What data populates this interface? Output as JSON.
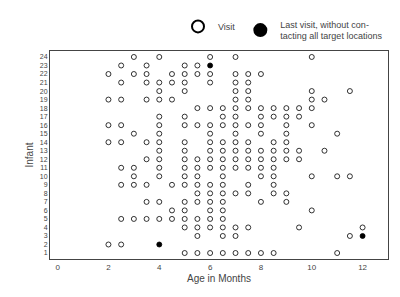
{
  "chart_data": {
    "type": "scatter",
    "xlabel": "Age in Months",
    "ylabel": "Infant",
    "xlim": [
      -0.3,
      13.0
    ],
    "ylim": [
      0.3,
      24.7
    ],
    "xticks": [
      0,
      2,
      4,
      6,
      8,
      10,
      12
    ],
    "yticks": [
      1,
      2,
      3,
      4,
      5,
      6,
      7,
      8,
      9,
      10,
      11,
      12,
      13,
      14,
      15,
      16,
      17,
      18,
      19,
      20,
      21,
      22,
      23,
      24
    ],
    "grid": false,
    "legend": "upper right",
    "series": [
      {
        "name": "Visit",
        "color": "white",
        "marker": "circle",
        "x": [
          3,
          4,
          6,
          7,
          10,
          2.5,
          3.5,
          5,
          5.5,
          2,
          3,
          3.5,
          4.5,
          5,
          5.5,
          6,
          7,
          7.5,
          8,
          2.5,
          3.5,
          4,
          4.5,
          5,
          6,
          7,
          7.5,
          4,
          5,
          7,
          7.5,
          10,
          11.5,
          2,
          2.5,
          3.5,
          4,
          4.5,
          7,
          7.5,
          10,
          10.5,
          5.5,
          6,
          6.5,
          7,
          7.5,
          8,
          8.5,
          9,
          9.5,
          10,
          4,
          5,
          6.5,
          7,
          8,
          8.5,
          9,
          9.5,
          2,
          2.5,
          4,
          5,
          5.5,
          6,
          6.5,
          7,
          7.5,
          8,
          9,
          10,
          3,
          4,
          6,
          7,
          8,
          9,
          11,
          2,
          2.5,
          3.5,
          4,
          5,
          6,
          6.5,
          7,
          7.5,
          8.5,
          9,
          4,
          5,
          6,
          6.5,
          7,
          7.5,
          8,
          8.5,
          9,
          9.5,
          10.5,
          3.5,
          4,
          5,
          5.5,
          6,
          6.5,
          7,
          7.5,
          8,
          8.5,
          9,
          9.5,
          2.5,
          3,
          4,
          5,
          5.5,
          6,
          6.5,
          7,
          7.5,
          8,
          8.5,
          3,
          4,
          5,
          5.5,
          6.5,
          8,
          8.5,
          10,
          11,
          11.5,
          2.5,
          3,
          3.5,
          4.5,
          5,
          5.5,
          6,
          6.5,
          7.5,
          8.5,
          5.5,
          6,
          6.5,
          7,
          7.5,
          8.5,
          9,
          3.5,
          4,
          5,
          5.5,
          6,
          6.5,
          8,
          9,
          4.5,
          5,
          6,
          6.5,
          10,
          2.5,
          3,
          3.5,
          4,
          4.5,
          5,
          5.5,
          6,
          6.5,
          5,
          5.5,
          6,
          6.5,
          7,
          7.5,
          9.5,
          12,
          5.5,
          6.5,
          7,
          11.5,
          2,
          2.5,
          5,
          5.5,
          6,
          6.5,
          7,
          7.5,
          8,
          8.5,
          11
        ],
        "y": [
          24,
          24,
          24,
          24,
          24,
          23,
          23,
          23,
          23,
          22,
          22,
          22,
          22,
          22,
          22,
          22,
          22,
          22,
          22,
          21,
          21,
          21,
          21,
          21,
          21,
          21,
          21,
          20,
          20,
          20,
          20,
          20,
          20,
          19,
          19,
          19,
          19,
          19,
          19,
          19,
          19,
          19,
          18,
          18,
          18,
          18,
          18,
          18,
          18,
          18,
          18,
          18,
          17,
          17,
          17,
          17,
          17,
          17,
          17,
          17,
          16,
          16,
          16,
          16,
          16,
          16,
          16,
          16,
          16,
          16,
          16,
          16,
          15,
          15,
          15,
          15,
          15,
          15,
          15,
          14,
          14,
          14,
          14,
          14,
          14,
          14,
          14,
          14,
          14,
          14,
          13,
          13,
          13,
          13,
          13,
          13,
          13,
          13,
          13,
          13,
          13,
          12,
          12,
          12,
          12,
          12,
          12,
          12,
          12,
          12,
          12,
          12,
          12,
          11,
          11,
          11,
          11,
          11,
          11,
          11,
          11,
          11,
          11,
          11,
          10,
          10,
          10,
          10,
          10,
          10,
          10,
          10,
          10,
          10,
          9,
          9,
          9,
          9,
          9,
          9,
          9,
          9,
          9,
          9,
          8,
          8,
          8,
          8,
          8,
          8,
          8,
          7,
          7,
          7,
          7,
          7,
          7,
          7,
          7,
          6,
          6,
          6,
          6,
          6,
          5,
          5,
          5,
          5,
          5,
          5,
          5,
          5,
          5,
          4,
          4,
          4,
          4,
          4,
          4,
          4,
          4,
          3,
          3,
          3,
          3,
          2,
          2,
          1,
          1,
          1,
          1,
          1,
          1,
          1,
          1,
          1
        ]
      },
      {
        "name": "Last visit, without con-\ntacting all target locations",
        "color": "black",
        "marker": "circle",
        "x": [
          6,
          4,
          12
        ],
        "y": [
          23,
          2,
          3
        ]
      }
    ]
  }
}
